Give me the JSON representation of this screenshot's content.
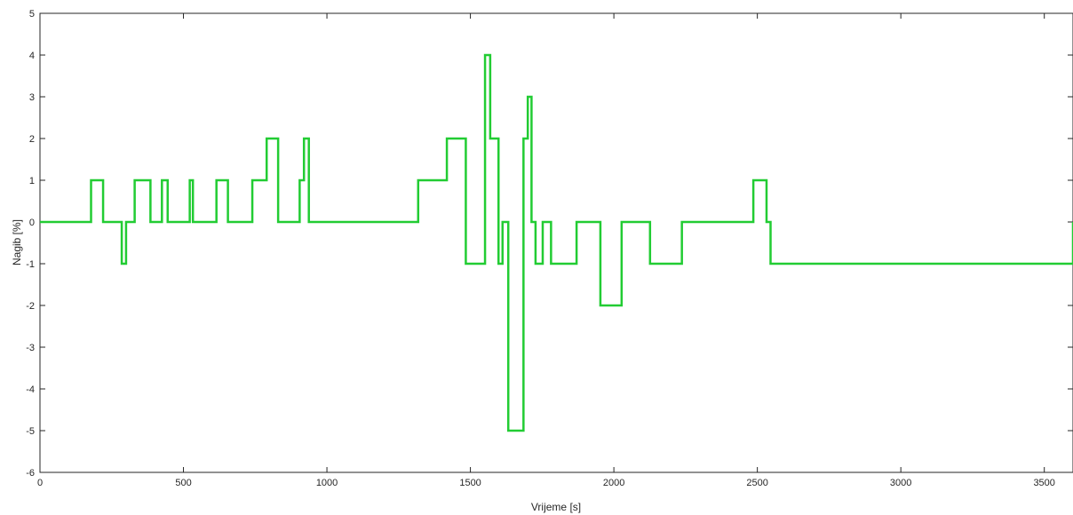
{
  "chart_data": {
    "type": "line",
    "title": "",
    "xlabel": "Vrijeme [s]",
    "ylabel": "Nagib [%]",
    "xlim": [
      0,
      3600
    ],
    "ylim": [
      -6,
      5
    ],
    "xticks": [
      0,
      500,
      1000,
      1500,
      2000,
      2500,
      3000,
      3500
    ],
    "yticks": [
      -6,
      -5,
      -4,
      -3,
      -2,
      -1,
      0,
      1,
      2,
      3,
      4,
      5
    ],
    "grid": false,
    "line_color": "#22cc33",
    "series": [
      {
        "step": true,
        "x": [
          0,
          178,
          220,
          285,
          300,
          330,
          385,
          425,
          445,
          522,
          533,
          615,
          655,
          740,
          790,
          830,
          905,
          920,
          937,
          1318,
          1418,
          1484,
          1551,
          1569,
          1598,
          1612,
          1632,
          1685,
          1700,
          1713,
          1727,
          1752,
          1781,
          1870,
          1953,
          2027,
          2126,
          2237,
          2486,
          2532,
          2546,
          3600
        ],
        "y": [
          0,
          1,
          0,
          -1,
          0,
          1,
          0,
          1,
          0,
          1,
          0,
          1,
          0,
          1,
          2,
          0,
          1,
          2,
          0,
          1,
          2,
          -1,
          4,
          2,
          -1,
          0,
          -5,
          2,
          3,
          0,
          -1,
          0,
          -1,
          0,
          -2,
          0,
          -1,
          0,
          1,
          0,
          -1,
          0
        ]
      }
    ]
  }
}
